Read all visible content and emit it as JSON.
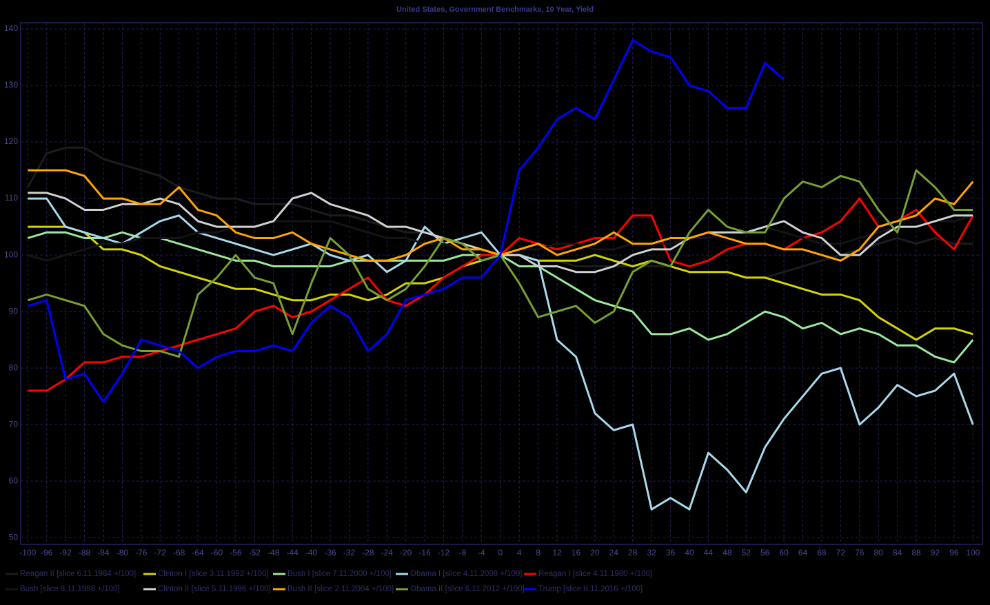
{
  "chart_data": {
    "type": "line",
    "title": "United States, Government Benchmarks, 10 Year, Yield",
    "x": [
      -100,
      -96,
      -92,
      -88,
      -84,
      -80,
      -76,
      -72,
      -68,
      -64,
      -60,
      -56,
      -52,
      -48,
      -44,
      -40,
      -36,
      -32,
      -28,
      -24,
      -20,
      -16,
      -12,
      -8,
      -4,
      0,
      4,
      8,
      12,
      16,
      20,
      24,
      28,
      32,
      36,
      40,
      44,
      48,
      52,
      56,
      60,
      64,
      68,
      72,
      76,
      80,
      84,
      88,
      92,
      96,
      100
    ],
    "xlim": [
      -101.5,
      102
    ],
    "xticks": [
      -100,
      -96,
      -92,
      -88,
      -84,
      -80,
      -76,
      -72,
      -68,
      -64,
      -60,
      -56,
      -52,
      -48,
      -44,
      -40,
      -36,
      -32,
      -28,
      -24,
      -20,
      -16,
      -12,
      -8,
      -4,
      0,
      4,
      8,
      12,
      16,
      20,
      24,
      28,
      32,
      36,
      40,
      44,
      48,
      52,
      56,
      60,
      64,
      68,
      72,
      76,
      80,
      84,
      88,
      92,
      96,
      100
    ],
    "ylim": [
      48.8,
      141.1
    ],
    "yticks": [
      50,
      60,
      70,
      80,
      90,
      100,
      110,
      120,
      130,
      140
    ],
    "grid": true,
    "legend": "bottom",
    "series": [
      {
        "name": "Reagan II [slice 6.11.1984 +/100]",
        "color": "#1c1c1c",
        "values": [
          112,
          118,
          119,
          119,
          117,
          116,
          115,
          114,
          112,
          111,
          110,
          110,
          109,
          109,
          109,
          108,
          107,
          107,
          106,
          105,
          104,
          104,
          103,
          102,
          101,
          100,
          100,
          99,
          99,
          98,
          98,
          98,
          98,
          98,
          98,
          97,
          97,
          97,
          96,
          96,
          97,
          98,
          99,
          100,
          101,
          102,
          103,
          102,
          103,
          102,
          102
        ]
      },
      {
        "name": "Clinton I [slice 3.11.1992 +/100]",
        "color": "#d4d400",
        "values": [
          105,
          105,
          105,
          104,
          101,
          101,
          100,
          98,
          97,
          96,
          95,
          94,
          94,
          93,
          92,
          92,
          93,
          93,
          92,
          93,
          95,
          95,
          96,
          98,
          99,
          100,
          100,
          99,
          99,
          99,
          100,
          99,
          98,
          99,
          98,
          97,
          97,
          97,
          96,
          96,
          95,
          94,
          93,
          93,
          92,
          89,
          87,
          85,
          87,
          87,
          86
        ]
      },
      {
        "name": "Bush I [slice 7.11.2000 +/100]",
        "color": "#9be89b",
        "values": [
          103,
          104,
          104,
          103,
          103,
          104,
          103,
          103,
          102,
          101,
          100,
          99,
          99,
          98,
          98,
          98,
          98,
          99,
          99,
          99,
          99,
          99,
          99,
          100,
          100,
          100,
          98,
          98,
          96,
          94,
          92,
          91,
          90,
          86,
          86,
          87,
          85,
          86,
          88,
          90,
          89,
          87,
          88,
          86,
          87,
          86,
          84,
          84,
          82,
          81,
          85
        ]
      },
      {
        "name": "Obama I [slice 4.11.2008 +/100]",
        "color": "#a8d8ea",
        "values": [
          110,
          110,
          105,
          104,
          103,
          102,
          104,
          106,
          107,
          104,
          103,
          102,
          101,
          100,
          101,
          102,
          100,
          99,
          100,
          97,
          99,
          105,
          102,
          103,
          104,
          100,
          100,
          99,
          85,
          82,
          72,
          69,
          70,
          55,
          57,
          55,
          65,
          62,
          58,
          66,
          71,
          75,
          79,
          80,
          70,
          73,
          77,
          75,
          76,
          79,
          70
        ]
      },
      {
        "name": "Reagan I [slice 4.11.1980 +/100]",
        "color": "#ff0000",
        "values": [
          76,
          76,
          78,
          81,
          81,
          82,
          82,
          83,
          84,
          85,
          86,
          87,
          90,
          91,
          89,
          90,
          92,
          94,
          96,
          92,
          91,
          93,
          96,
          98,
          100,
          100,
          103,
          102,
          101,
          102,
          103,
          103,
          107,
          107,
          99,
          98,
          99,
          101,
          102,
          102,
          101,
          103,
          104,
          106,
          110,
          105,
          106,
          108,
          104,
          101,
          107
        ]
      },
      {
        "name": "Bush [slice 8.11.1988 +/100]",
        "color": "#141414",
        "values": [
          100,
          99,
          100,
          101,
          102,
          102,
          103,
          103,
          103,
          104,
          104,
          105,
          105,
          106,
          106,
          106,
          106,
          105,
          104,
          103,
          103,
          102,
          102,
          101,
          101,
          100,
          101,
          101,
          102,
          102,
          101,
          101,
          102,
          102,
          102,
          103,
          103,
          104,
          104,
          105,
          104,
          103,
          102,
          102,
          103,
          104,
          105,
          105,
          106,
          106,
          107
        ]
      },
      {
        "name": "Clinton II [slice 5.11.1996 +/100]",
        "color": "#d0d0d0",
        "values": [
          111,
          111,
          110,
          108,
          108,
          109,
          109,
          110,
          109,
          106,
          105,
          105,
          105,
          106,
          110,
          111,
          109,
          108,
          107,
          105,
          105,
          104,
          103,
          102,
          101,
          100,
          100,
          98,
          98,
          97,
          97,
          98,
          100,
          101,
          101,
          103,
          104,
          104,
          104,
          105,
          106,
          104,
          103,
          100,
          100,
          103,
          105,
          105,
          106,
          107,
          107
        ]
      },
      {
        "name": "Bush II [slice 2.11.2004 +/100]",
        "color": "#ffa500",
        "values": [
          115,
          115,
          115,
          114,
          110,
          110,
          109,
          109,
          112,
          108,
          107,
          104,
          103,
          103,
          104,
          102,
          101,
          100,
          99,
          99,
          100,
          102,
          103,
          101,
          101,
          100,
          101,
          102,
          100,
          101,
          102,
          104,
          102,
          102,
          103,
          103,
          104,
          103,
          102,
          102,
          101,
          101,
          100,
          99,
          101,
          105,
          106,
          107,
          110,
          109,
          113
        ]
      },
      {
        "name": "Obama II [slice 6.11.2012 +/100]",
        "color": "#77a032",
        "values": [
          92,
          93,
          92,
          91,
          86,
          84,
          83,
          83,
          82,
          93,
          96,
          100,
          96,
          95,
          86,
          95,
          103,
          100,
          94,
          92,
          94,
          98,
          103,
          102,
          99,
          100,
          95,
          89,
          90,
          91,
          88,
          90,
          97,
          99,
          98,
          104,
          108,
          105,
          104,
          104,
          110,
          113,
          112,
          114,
          113,
          108,
          104,
          115,
          112,
          108,
          108
        ]
      },
      {
        "name": "Trump [slice 8.11.2016 +/100]",
        "color": "#0000ff",
        "values": [
          91,
          92,
          78,
          79,
          74,
          79,
          85,
          84,
          83,
          80,
          82,
          83,
          83,
          84,
          83,
          88,
          91,
          89,
          83,
          86,
          92,
          93,
          94,
          96,
          96,
          100,
          115,
          119,
          124,
          126,
          124,
          131,
          138,
          136,
          135,
          130,
          129,
          126,
          126,
          134,
          131,
          null,
          null,
          null,
          null,
          null,
          null,
          null,
          null,
          null,
          null
        ]
      }
    ]
  }
}
